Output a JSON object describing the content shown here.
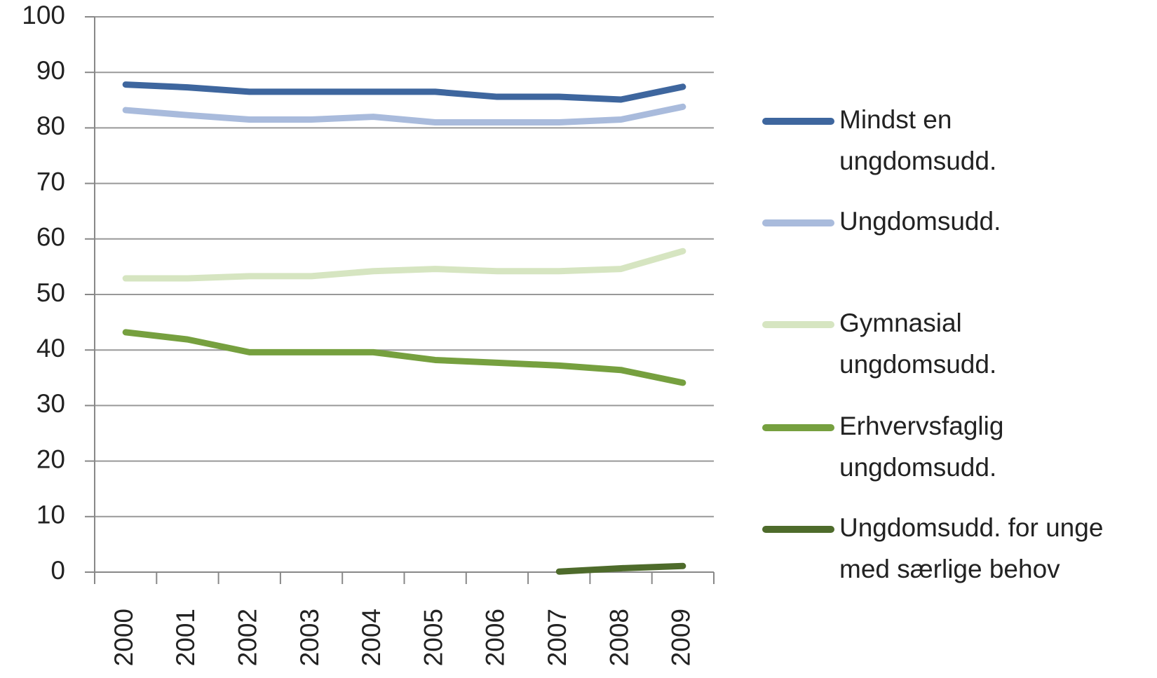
{
  "chart_data": {
    "type": "line",
    "categories": [
      "2000",
      "2001",
      "2002",
      "2003",
      "2004",
      "2005",
      "2006",
      "2007",
      "2008",
      "2009"
    ],
    "series": [
      {
        "name": "Mindst en\nungdomsudd.",
        "color": "#3e669e",
        "values": [
          87.8,
          87.3,
          86.5,
          86.5,
          86.5,
          86.5,
          85.6,
          85.6,
          85.1,
          87.4
        ]
      },
      {
        "name": "Ungdomsudd.",
        "color": "#a9bbdc",
        "values": [
          83.2,
          82.3,
          81.5,
          81.5,
          82,
          81,
          81,
          81,
          81.5,
          83.8
        ]
      },
      {
        "name": "Gymnasial\nungdomsudd.",
        "color": "#d6e5c1",
        "values": [
          52.9,
          52.9,
          53.3,
          53.3,
          54.2,
          54.6,
          54.2,
          54.2,
          54.6,
          57.8
        ]
      },
      {
        "name": "Erhvervsfaglig\nungdomsudd.",
        "color": "#76a03f",
        "values": [
          43.2,
          41.9,
          39.6,
          39.6,
          39.6,
          38.2,
          37.7,
          37.2,
          36.4,
          34.1
        ]
      },
      {
        "name": "Ungdomsudd. for unge\nmed særlige behov",
        "color": "#4e6b2b",
        "values": [
          null,
          null,
          null,
          null,
          null,
          null,
          null,
          0.1,
          0.7,
          1.1
        ]
      }
    ],
    "ylim": [
      0,
      100
    ],
    "yticks": [
      0,
      10,
      20,
      30,
      40,
      50,
      60,
      70,
      80,
      90,
      100
    ],
    "grid": true,
    "legend": "right"
  }
}
